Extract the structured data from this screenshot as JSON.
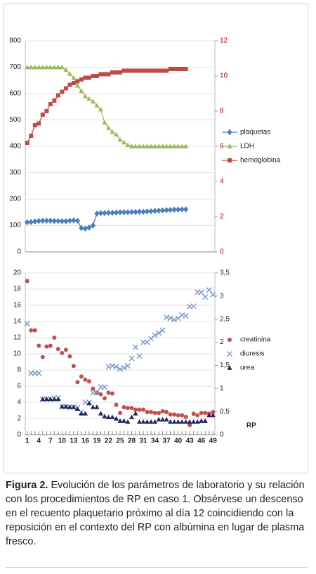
{
  "chart_data": [
    {
      "type": "line",
      "categories": [
        null,
        null,
        null,
        null,
        null,
        null,
        null,
        null,
        null,
        null,
        null,
        null,
        null,
        null,
        null,
        null,
        null,
        null,
        null,
        null,
        null,
        null,
        null,
        null,
        null,
        null,
        null,
        null,
        null,
        null,
        null,
        null,
        null,
        null,
        null,
        null,
        null,
        null,
        null,
        null,
        null,
        null
      ],
      "ylim": [
        0,
        800
      ],
      "yticks": [
        0,
        100,
        200,
        300,
        400,
        500,
        600,
        700,
        800
      ],
      "y2lim": [
        0,
        12
      ],
      "y2ticks": [
        0,
        2,
        4,
        6,
        8,
        10,
        12
      ],
      "y2tick_color": "#c00000",
      "grid": true,
      "series": [
        {
          "name": "plaquetas",
          "color": "#4a7ebb",
          "marker": "diamond",
          "values": [
            112,
            113,
            115,
            117,
            118,
            118,
            118,
            117,
            117,
            116,
            116,
            118,
            119,
            118,
            90,
            88,
            92,
            100,
            145,
            147,
            147,
            148,
            148,
            149,
            150,
            150,
            150,
            151,
            151,
            152,
            152,
            153,
            154,
            155,
            156,
            157,
            158,
            159,
            160,
            160,
            161,
            161
          ]
        },
        {
          "name": "LDH",
          "color": "#9bbb59",
          "marker": "triangle",
          "values": [
            700,
            700,
            700,
            700,
            700,
            700,
            700,
            700,
            700,
            700,
            690,
            675,
            660,
            630,
            610,
            590,
            580,
            570,
            555,
            540,
            490,
            470,
            455,
            445,
            425,
            415,
            405,
            400,
            400,
            400,
            400,
            400,
            400,
            400,
            400,
            400,
            400,
            400,
            400,
            400,
            400,
            400
          ]
        },
        {
          "name": "hemoglobina",
          "color": "#be4b48",
          "marker": "square",
          "axis": "y2",
          "values": [
            6.2,
            6.6,
            7.2,
            7.3,
            7.8,
            8.0,
            8.4,
            8.6,
            8.9,
            9.1,
            9.3,
            9.5,
            9.6,
            9.7,
            9.8,
            9.9,
            9.9,
            10.0,
            10.0,
            10.1,
            10.1,
            10.1,
            10.2,
            10.2,
            10.2,
            10.3,
            10.3,
            10.3,
            10.3,
            10.3,
            10.3,
            10.3,
            10.3,
            10.3,
            10.3,
            10.3,
            10.3,
            10.4,
            10.4,
            10.4,
            10.4,
            10.4
          ]
        }
      ]
    },
    {
      "type": "scatter",
      "x_label": "RP",
      "categories": [
        1,
        null,
        null,
        4,
        null,
        null,
        7,
        null,
        null,
        10,
        null,
        null,
        13,
        null,
        null,
        16,
        null,
        null,
        19,
        null,
        null,
        22,
        null,
        null,
        25,
        null,
        null,
        28,
        null,
        null,
        31,
        null,
        null,
        34,
        null,
        null,
        37,
        null,
        null,
        40,
        null,
        null,
        43,
        null,
        null,
        46,
        null,
        null,
        49
      ],
      "ylim": [
        0,
        20
      ],
      "yticks": [
        0,
        2,
        4,
        6,
        8,
        10,
        12,
        14,
        16,
        18,
        20
      ],
      "y2lim": [
        0,
        3.5
      ],
      "y2ticks": [
        0,
        {
          "value": 0.5,
          "label": "0,5"
        },
        1,
        {
          "value": 1.5,
          "label": "1,5"
        },
        2,
        {
          "value": 2.5,
          "label": "2,5"
        },
        3,
        {
          "value": 3.5,
          "label": "3,5"
        }
      ],
      "grid": true,
      "series": [
        {
          "name": "creatinina",
          "color": "#c0504d",
          "marker": "circle",
          "values": [
            19,
            12.9,
            12.9,
            11,
            9.6,
            10.9,
            11,
            12,
            10.6,
            10.1,
            10.5,
            9.7,
            8.5,
            6.5,
            7.2,
            6.8,
            6.6,
            5.7,
            5.2,
            5.0,
            4.5,
            5.2,
            5.1,
            3.7,
            2.7,
            3.4,
            3.3,
            3.3,
            3.1,
            3.1,
            3.1,
            2.8,
            2.8,
            2.7,
            2.7,
            2.9,
            2.8,
            2.5,
            2.5,
            2.4,
            2.4,
            2.2,
            1.2,
            2.6,
            2.4,
            2.7,
            2.7,
            2.6,
            2.8
          ]
        },
        {
          "name": "diuresis",
          "color": "#6f95cc",
          "marker": "x",
          "axis": "y2",
          "values": [
            2.4,
            1.33,
            1.33,
            1.33,
            0.77,
            0.77,
            0.77,
            0.8,
            0.8,
            0.61,
            0.6,
            0.6,
            0.6,
            0.58,
            0.49,
            0.7,
            0.7,
            0.91,
            0.91,
            1.03,
            1.03,
            1.47,
            1.49,
            1.47,
            1.42,
            1.45,
            1.49,
            1.65,
            1.89,
            1.7,
            2.0,
            2.0,
            2.08,
            2.15,
            2.2,
            2.26,
            2.54,
            2.52,
            2.49,
            2.52,
            2.59,
            2.57,
            2.77,
            2.78,
            3.08,
            3.08,
            2.98,
            3.13,
            3.03
          ]
        },
        {
          "name": "urea",
          "color": "#1f2a5c",
          "marker": "triangle",
          "axis": "y2",
          "values": [
            null,
            null,
            null,
            null,
            0.77,
            0.77,
            0.77,
            0.77,
            0.77,
            0.61,
            0.61,
            0.6,
            0.6,
            0.56,
            0.46,
            0.46,
            0.68,
            0.6,
            0.6,
            0.46,
            0.4,
            0.38,
            0.38,
            0.35,
            0.3,
            0.3,
            0.28,
            0.38,
            0.46,
            0.28,
            0.28,
            0.28,
            0.28,
            0.28,
            0.33,
            0.33,
            0.33,
            0.28,
            0.28,
            0.28,
            0.28,
            0.28,
            0.28,
            0.28,
            0.28,
            0.3,
            0.3,
            0.42,
            0.42
          ]
        }
      ]
    }
  ],
  "caption": {
    "label": "Figura 2.",
    "text": "Evolución de los parámetros de laboratorio y su relación con los procedimientos de RP en caso 1. Obsérvese un descenso en el recuento plaquetario próximo al día 12 coincidiendo con la reposición en el contexto del RP con albúmina en lugar de plasma fresco."
  }
}
